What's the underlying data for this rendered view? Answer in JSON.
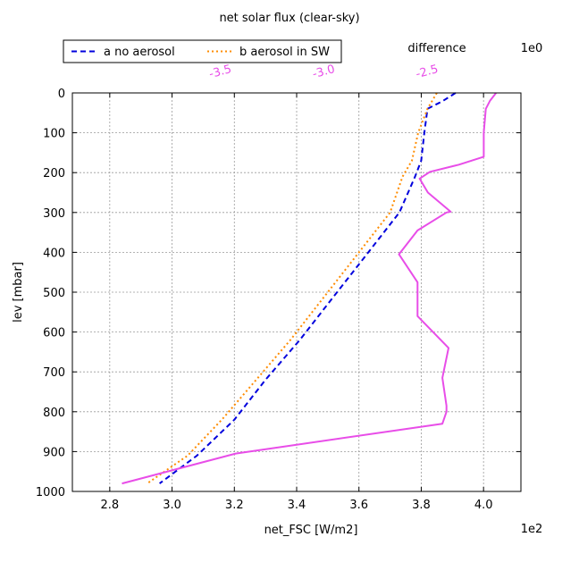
{
  "chart_data": {
    "type": "line",
    "title": "net solar flux (clear-sky)",
    "xlabel": "net_FSC [W/m2]",
    "ylabel": "lev [mbar]",
    "x_multiplier": "1e2",
    "xlim": [
      2.68,
      4.12
    ],
    "ylim": [
      1000,
      0
    ],
    "x_ticks": [
      2.8,
      3.0,
      3.2,
      3.4,
      3.6,
      3.8,
      4.0
    ],
    "x_tick_labels": [
      "2.8",
      "3.0",
      "3.2",
      "3.4",
      "3.6",
      "3.8",
      "4.0"
    ],
    "y_ticks": [
      0,
      100,
      200,
      300,
      400,
      500,
      600,
      700,
      800,
      900,
      1000
    ],
    "y_tick_labels": [
      "0",
      "100",
      "200",
      "300",
      "400",
      "500",
      "600",
      "700",
      "800",
      "900",
      "1000"
    ],
    "grid": true,
    "legend_position": "top-left",
    "series": [
      {
        "name": "a no aerosol",
        "color": "#0000dd",
        "style": "dashed",
        "axis": "bottom",
        "points": [
          [
            3.91,
            0
          ],
          [
            3.87,
            20
          ],
          [
            3.82,
            40
          ],
          [
            3.81,
            100
          ],
          [
            3.8,
            170
          ],
          [
            3.78,
            210
          ],
          [
            3.73,
            300
          ],
          [
            3.62,
            410
          ],
          [
            3.51,
            520
          ],
          [
            3.41,
            620
          ],
          [
            3.3,
            720
          ],
          [
            3.2,
            820
          ],
          [
            3.08,
            910
          ],
          [
            2.96,
            980
          ]
        ]
      },
      {
        "name": "b aerosol in SW",
        "color": "#ff8c00",
        "style": "dotted",
        "axis": "bottom",
        "points": [
          [
            3.85,
            0
          ],
          [
            3.82,
            40
          ],
          [
            3.79,
            100
          ],
          [
            3.77,
            170
          ],
          [
            3.74,
            210
          ],
          [
            3.7,
            300
          ],
          [
            3.59,
            410
          ],
          [
            3.48,
            520
          ],
          [
            3.38,
            620
          ],
          [
            3.27,
            720
          ],
          [
            3.16,
            820
          ],
          [
            3.05,
            910
          ],
          [
            2.92,
            980
          ]
        ]
      },
      {
        "name": "difference",
        "color": "#e84de8",
        "style": "solid",
        "axis": "top",
        "points": [
          [
            -2.17,
            0
          ],
          [
            -2.2,
            20
          ],
          [
            -2.22,
            40
          ],
          [
            -2.23,
            100
          ],
          [
            -2.23,
            160
          ],
          [
            -2.35,
            180
          ],
          [
            -2.49,
            198
          ],
          [
            -2.54,
            215
          ],
          [
            -2.5,
            250
          ],
          [
            -2.39,
            298
          ],
          [
            -2.41,
            300
          ],
          [
            -2.55,
            345
          ],
          [
            -2.64,
            405
          ],
          [
            -2.55,
            475
          ],
          [
            -2.55,
            560
          ],
          [
            -2.4,
            640
          ],
          [
            -2.43,
            715
          ],
          [
            -2.41,
            785
          ],
          [
            -2.41,
            800
          ],
          [
            -2.43,
            830
          ],
          [
            -3.43,
            905
          ],
          [
            -3.98,
            980
          ]
        ]
      }
    ],
    "top_axis": {
      "label": "difference",
      "multiplier": "1e0",
      "color": "#e84de8",
      "xlim": [
        -4.22,
        -2.05
      ],
      "ticks": [
        -3.5,
        -3.0,
        -2.5
      ],
      "tick_labels": [
        "-3.5",
        "-3.0",
        "-2.5"
      ]
    }
  }
}
